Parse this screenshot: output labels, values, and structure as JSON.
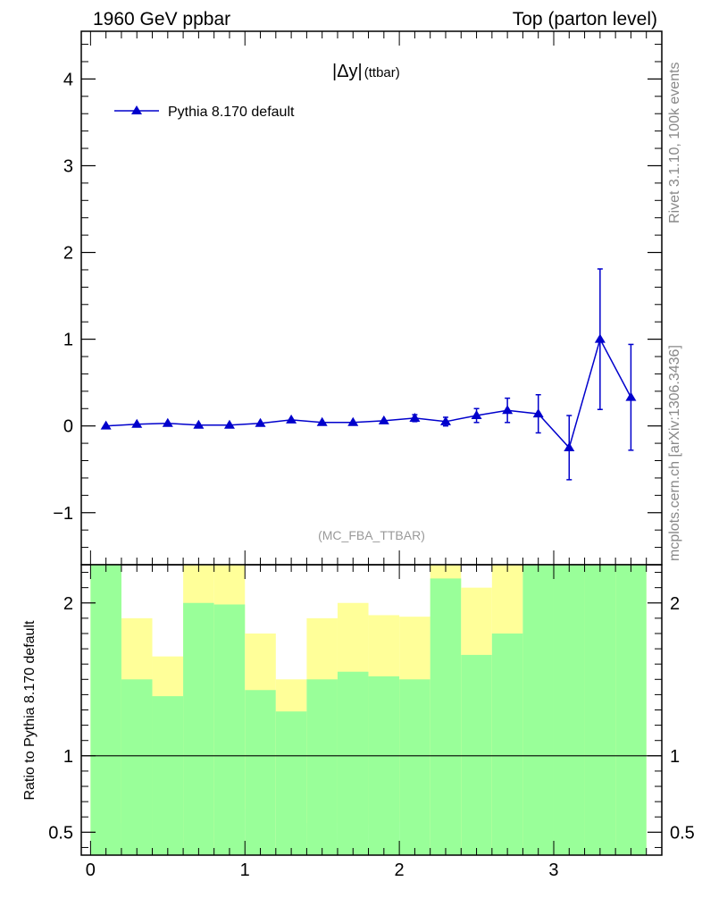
{
  "header": {
    "left": "1960 GeV ppbar",
    "right": "Top (parton level)"
  },
  "side_text": {
    "rivet": "Rivet 3.1.10,  100k events",
    "mcplots": "mcplots.cern.ch [arXiv:1306.3436]"
  },
  "observable": {
    "symbol": "|Δy|",
    "subscript": "(ttbar)"
  },
  "analysis_tag": "(MC_FBA_TTBAR)",
  "ratio_ylabel": "Ratio to Pythia 8.170 default",
  "colors": {
    "series": "#0000cc",
    "band_inner": "#99ff99",
    "band_outer": "#ffff99",
    "ratio_line": "#000000"
  },
  "chart_data": [
    {
      "type": "line",
      "xlim": [
        -0.06,
        3.7
      ],
      "ylim": [
        -1.6,
        4.55
      ],
      "xticks": [
        0,
        1,
        2,
        3
      ],
      "yticks": [
        -1,
        0,
        1,
        2,
        3,
        4
      ],
      "ytick_labels": [
        "−1",
        "0",
        "1",
        "2",
        "3",
        "4"
      ],
      "grid": false,
      "legend": "top-left",
      "series": [
        {
          "name": "Pythia 8.170 default",
          "marker": "triangle",
          "x": [
            0.1,
            0.3,
            0.5,
            0.7,
            0.9,
            1.1,
            1.3,
            1.5,
            1.7,
            1.9,
            2.1,
            2.3,
            2.5,
            2.7,
            2.9,
            3.1,
            3.3,
            3.5
          ],
          "y": [
            0.0,
            0.02,
            0.03,
            0.01,
            0.01,
            0.03,
            0.07,
            0.04,
            0.04,
            0.06,
            0.09,
            0.05,
            0.12,
            0.18,
            0.14,
            -0.25,
            1.0,
            0.33
          ],
          "yerr": [
            0.01,
            0.01,
            0.02,
            0.01,
            0.01,
            0.02,
            0.02,
            0.02,
            0.02,
            0.03,
            0.04,
            0.05,
            0.08,
            0.14,
            0.22,
            0.37,
            0.81,
            0.61
          ]
        }
      ]
    },
    {
      "type": "area",
      "ylabel": "Ratio to Pythia 8.170 default",
      "xlim": [
        -0.06,
        3.7
      ],
      "ylim": [
        0.35,
        2.25
      ],
      "xticks": [
        0,
        1,
        2,
        3
      ],
      "yticks": [
        0.5,
        1,
        2
      ],
      "ytick_labels": [
        "0.5",
        "1",
        "2"
      ],
      "reference_line": 1,
      "bins": [
        0.0,
        0.2,
        0.4,
        0.6,
        0.8,
        1.0,
        1.2,
        1.4,
        1.6,
        1.8,
        2.0,
        2.2,
        2.4,
        2.6,
        2.8,
        3.0,
        3.2,
        3.4,
        3.6
      ],
      "inner_band": {
        "lower": [
          0.35,
          0.35,
          0.35,
          0.35,
          0.35,
          0.35,
          0.35,
          0.35,
          0.35,
          0.35,
          0.35,
          0.35,
          0.35,
          0.35,
          0.35,
          0.35,
          0.35,
          0.35
        ],
        "upper": [
          2.25,
          1.5,
          1.39,
          2.0,
          1.99,
          1.43,
          1.29,
          1.5,
          1.55,
          1.52,
          1.5,
          2.16,
          1.66,
          1.8,
          2.25,
          2.25,
          2.25,
          2.25
        ]
      },
      "outer_band": {
        "lower": [
          0.35,
          0.56,
          0.37,
          0.35,
          0.35,
          0.65,
          0.35,
          0.56,
          0.49,
          0.55,
          0.57,
          0.35,
          0.36,
          0.35,
          0.35,
          0.35,
          0.35,
          0.35
        ],
        "upper": [
          2.25,
          1.9,
          1.65,
          2.25,
          2.25,
          1.8,
          1.5,
          1.9,
          2.0,
          1.92,
          1.91,
          2.25,
          2.1,
          2.25,
          2.25,
          2.25,
          2.25,
          2.25
        ]
      }
    }
  ]
}
